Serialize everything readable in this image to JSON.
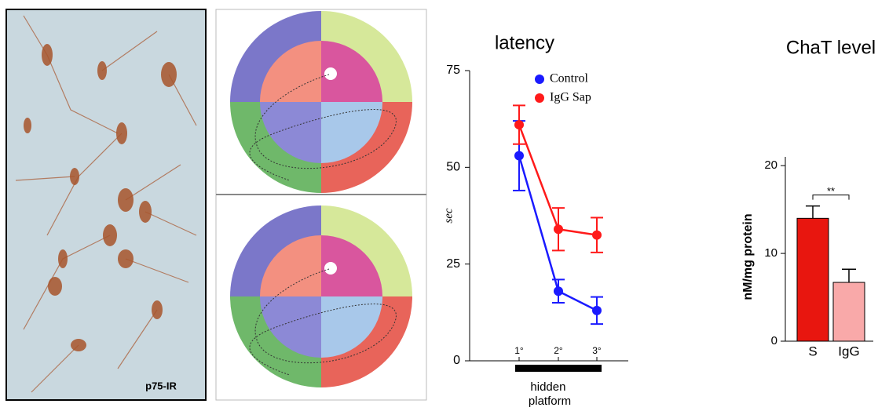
{
  "image_label": "p75-IR",
  "chart_data": [
    {
      "type": "line",
      "title": "latency",
      "y_label": "sec",
      "x_label": "hidden platform",
      "categories": [
        "1°",
        "2°",
        "3°"
      ],
      "series": [
        {
          "name": "Control",
          "color": "#1a1aff",
          "values": [
            53,
            18,
            13
          ],
          "errors": [
            9,
            3,
            3.5
          ]
        },
        {
          "name": "IgG Sap",
          "color": "#ff1a1a",
          "values": [
            61,
            34,
            32.5
          ],
          "errors": [
            5,
            5.5,
            4.5
          ]
        }
      ],
      "ylim": [
        0,
        75
      ],
      "yticks": [
        0,
        25,
        50,
        75
      ],
      "legend": "upper right"
    },
    {
      "type": "bar",
      "title": "ChaT level",
      "y_label": "nM/mg protein",
      "categories": [
        "S",
        "IgG"
      ],
      "values": [
        14,
        6.7
      ],
      "errors": [
        1.4,
        1.5
      ],
      "colors": [
        "#e8160f",
        "#f9a9a9"
      ],
      "annotation": "**",
      "ylim": [
        0,
        21
      ],
      "yticks": [
        0,
        10,
        20
      ]
    }
  ]
}
